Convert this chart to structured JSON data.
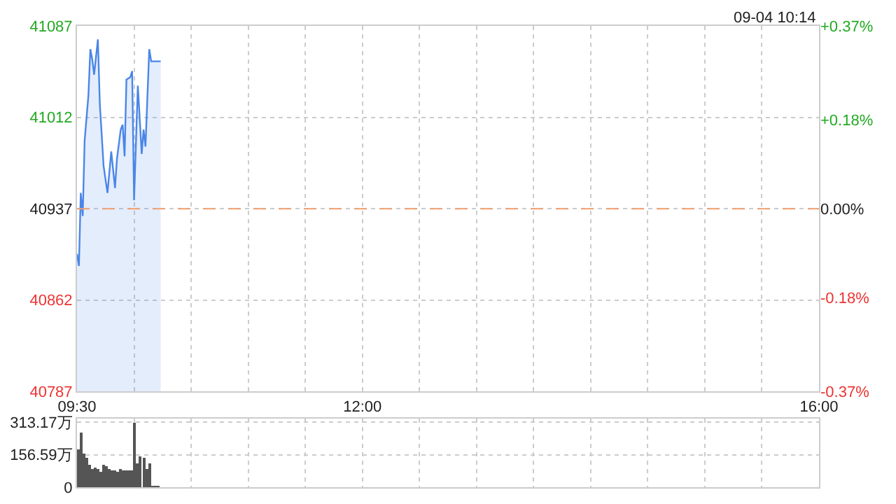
{
  "chart_data": [
    {
      "type": "area",
      "x": [
        9.5,
        9.517,
        9.533,
        9.55,
        9.567,
        9.6,
        9.617,
        9.633,
        9.65,
        9.683,
        9.7,
        9.733,
        9.767,
        9.8,
        9.833,
        9.85,
        9.883,
        9.9,
        9.917,
        9.933,
        9.967,
        9.983,
        10.0,
        10.033,
        10.067,
        10.083,
        10.1,
        10.133,
        10.15,
        10.233
      ],
      "series": [
        {
          "color": "#4a86e8",
          "values": [
            40900,
            40890,
            40950,
            40931,
            40993,
            41030,
            41068,
            41060,
            41047,
            41076,
            41023,
            40972,
            40950,
            40984,
            40954,
            40978,
            41002,
            41006,
            40980,
            41043,
            41045,
            41050,
            40944,
            41038,
            40982,
            41002,
            40988,
            41068,
            41058,
            41058
          ]
        }
      ],
      "xlim": [
        9.5,
        16
      ],
      "xticks": [
        {
          "value": 9.5,
          "label": "09:30"
        },
        {
          "value": 10,
          "label": null
        },
        {
          "value": 10.5,
          "label": null
        },
        {
          "value": 11,
          "label": null
        },
        {
          "value": 11.5,
          "label": null
        },
        {
          "value": 12,
          "label": "12:00"
        },
        {
          "value": 12.5,
          "label": null
        },
        {
          "value": 13,
          "label": null
        },
        {
          "value": 13.5,
          "label": null
        },
        {
          "value": 14,
          "label": null
        },
        {
          "value": 14.5,
          "label": null
        },
        {
          "value": 15,
          "label": null
        },
        {
          "value": 15.5,
          "label": null
        },
        {
          "value": 16,
          "label": "16:00"
        }
      ],
      "ylim": [
        40787,
        41087
      ],
      "yticks": [
        40787,
        40862,
        40937,
        41012,
        41087
      ],
      "y2lim": [
        -0.37,
        0.37
      ],
      "y2ticks": [
        {
          "value": -0.37,
          "label": "-0.37%"
        },
        {
          "value": -0.18,
          "label": "-0.18%"
        },
        {
          "value": 0,
          "label": "0.00%"
        },
        {
          "value": 0.18,
          "label": "+0.18%"
        },
        {
          "value": 0.37,
          "label": "+0.37%"
        }
      ],
      "ref_lines": [
        {
          "axis": "y",
          "value": 40937,
          "color": "#f0a070",
          "line_style": "dashed"
        }
      ],
      "grid": true,
      "annotations": [
        "09-04 10:14"
      ]
    },
    {
      "type": "bar",
      "x": [
        9.51,
        9.535,
        9.56,
        9.585,
        9.61,
        9.635,
        9.66,
        9.685,
        9.71,
        9.735,
        9.76,
        9.785,
        9.81,
        9.835,
        9.86,
        9.885,
        9.91,
        9.935,
        9.96,
        9.985,
        10.01,
        10.035,
        10.06,
        10.085,
        10.11,
        10.135,
        10.16,
        10.185,
        10.21
      ],
      "series": [
        {
          "color": "#555555",
          "values": [
            184,
            266,
            162,
            145,
            107,
            90,
            98,
            89,
            73,
            107,
            102,
            90,
            78,
            80,
            73,
            89,
            80,
            82,
            78,
            84,
            313,
            118,
            151,
            140,
            90,
            118,
            5,
            5,
            5
          ]
        }
      ],
      "xlim": [
        9.5,
        16
      ],
      "xticks": [
        {
          "value": 9.5,
          "label": null
        },
        {
          "value": 10,
          "label": null
        },
        {
          "value": 10.5,
          "label": null
        },
        {
          "value": 11,
          "label": null
        },
        {
          "value": 11.5,
          "label": null
        },
        {
          "value": 12,
          "label": null
        },
        {
          "value": 12.5,
          "label": null
        },
        {
          "value": 13,
          "label": null
        },
        {
          "value": 13.5,
          "label": null
        },
        {
          "value": 14,
          "label": null
        },
        {
          "value": 14.5,
          "label": null
        },
        {
          "value": 15,
          "label": null
        },
        {
          "value": 15.5,
          "label": null
        },
        {
          "value": 16,
          "label": null
        }
      ],
      "ylim": [
        0,
        330
      ],
      "yticks": [
        0,
        {
          "value": 156.59,
          "label": "156.59万"
        },
        {
          "value": 313.17,
          "label": "313.17万"
        }
      ],
      "tick_labels": "y",
      "grid": true
    }
  ]
}
